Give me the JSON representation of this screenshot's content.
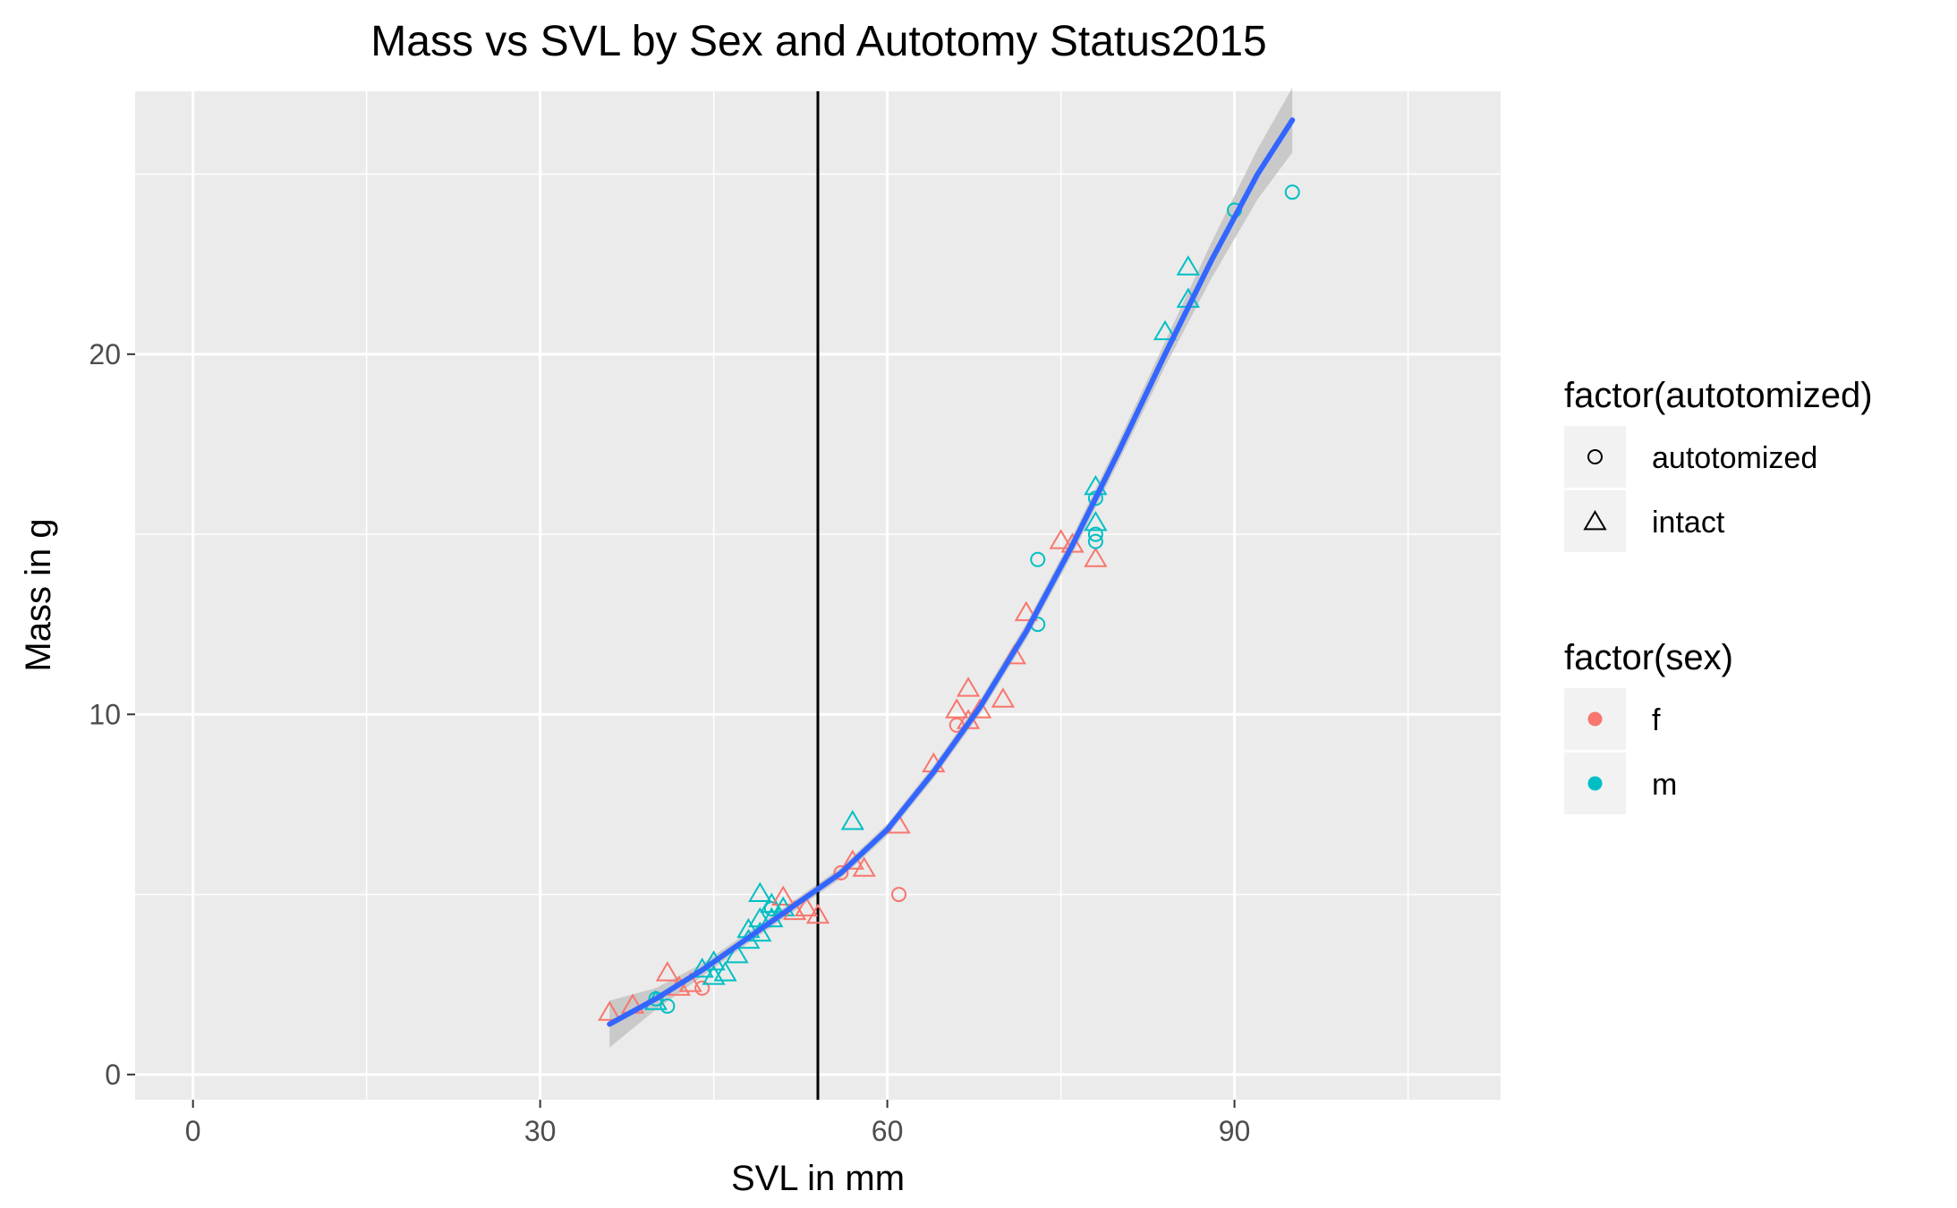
{
  "chart_data": {
    "type": "scatter",
    "title": "Mass vs SVL by Sex and Autotomy Status2015",
    "xlabel": "SVL in mm",
    "ylabel": "Mass in g",
    "xlim": [
      -5,
      113
    ],
    "ylim": [
      -0.7,
      27.3
    ],
    "x_ticks": [
      0,
      30,
      60,
      90
    ],
    "y_ticks": [
      0,
      10,
      20
    ],
    "grid": true,
    "vline": {
      "x": 54,
      "color": "#000000"
    },
    "legend_placement": "right",
    "legends": [
      {
        "title": "factor(autotomized)",
        "entries": [
          {
            "label": "autotomized",
            "shape": "circle"
          },
          {
            "label": "intact",
            "shape": "triangle"
          }
        ]
      },
      {
        "title": "factor(sex)",
        "entries": [
          {
            "label": "f",
            "color": "#F8766D"
          },
          {
            "label": "m",
            "color": "#00BFC4"
          }
        ]
      }
    ],
    "colors": {
      "f": "#F8766D",
      "m": "#00BFC4",
      "fit": "#3366FF",
      "ribbon": "#BDBDBD",
      "panel": "#EBEBEB",
      "grid": "#FFFFFF"
    },
    "points": [
      {
        "x": 36,
        "y": 1.7,
        "sex": "f",
        "status": "intact"
      },
      {
        "x": 38,
        "y": 1.9,
        "sex": "f",
        "status": "intact"
      },
      {
        "x": 40,
        "y": 2.0,
        "sex": "m",
        "status": "intact"
      },
      {
        "x": 40,
        "y": 2.1,
        "sex": "m",
        "status": "autotomized"
      },
      {
        "x": 41,
        "y": 1.9,
        "sex": "m",
        "status": "autotomized"
      },
      {
        "x": 41,
        "y": 2.8,
        "sex": "f",
        "status": "intact"
      },
      {
        "x": 42,
        "y": 2.4,
        "sex": "f",
        "status": "intact"
      },
      {
        "x": 43,
        "y": 2.5,
        "sex": "f",
        "status": "intact"
      },
      {
        "x": 44,
        "y": 2.4,
        "sex": "f",
        "status": "autotomized"
      },
      {
        "x": 44,
        "y": 2.9,
        "sex": "m",
        "status": "intact"
      },
      {
        "x": 45,
        "y": 2.7,
        "sex": "m",
        "status": "intact"
      },
      {
        "x": 45,
        "y": 3.1,
        "sex": "m",
        "status": "intact"
      },
      {
        "x": 46,
        "y": 2.8,
        "sex": "m",
        "status": "intact"
      },
      {
        "x": 47,
        "y": 3.3,
        "sex": "m",
        "status": "intact"
      },
      {
        "x": 48,
        "y": 3.7,
        "sex": "m",
        "status": "intact"
      },
      {
        "x": 48,
        "y": 4.0,
        "sex": "m",
        "status": "intact"
      },
      {
        "x": 49,
        "y": 3.9,
        "sex": "m",
        "status": "intact"
      },
      {
        "x": 49,
        "y": 4.3,
        "sex": "m",
        "status": "intact"
      },
      {
        "x": 49,
        "y": 5.0,
        "sex": "m",
        "status": "intact"
      },
      {
        "x": 50,
        "y": 4.3,
        "sex": "m",
        "status": "intact"
      },
      {
        "x": 50,
        "y": 4.6,
        "sex": "m",
        "status": "autotomized"
      },
      {
        "x": 50,
        "y": 4.7,
        "sex": "m",
        "status": "intact"
      },
      {
        "x": 51,
        "y": 4.9,
        "sex": "f",
        "status": "intact"
      },
      {
        "x": 51,
        "y": 4.6,
        "sex": "m",
        "status": "intact"
      },
      {
        "x": 52,
        "y": 4.5,
        "sex": "f",
        "status": "intact"
      },
      {
        "x": 53,
        "y": 4.6,
        "sex": "f",
        "status": "intact"
      },
      {
        "x": 54,
        "y": 4.4,
        "sex": "f",
        "status": "intact"
      },
      {
        "x": 56,
        "y": 5.6,
        "sex": "f",
        "status": "autotomized"
      },
      {
        "x": 57,
        "y": 5.9,
        "sex": "f",
        "status": "intact"
      },
      {
        "x": 57,
        "y": 7.0,
        "sex": "m",
        "status": "intact"
      },
      {
        "x": 58,
        "y": 5.7,
        "sex": "f",
        "status": "intact"
      },
      {
        "x": 61,
        "y": 5.0,
        "sex": "f",
        "status": "autotomized"
      },
      {
        "x": 61,
        "y": 6.9,
        "sex": "f",
        "status": "intact"
      },
      {
        "x": 64,
        "y": 8.6,
        "sex": "f",
        "status": "intact"
      },
      {
        "x": 66,
        "y": 9.7,
        "sex": "f",
        "status": "autotomized"
      },
      {
        "x": 66,
        "y": 10.1,
        "sex": "f",
        "status": "intact"
      },
      {
        "x": 67,
        "y": 9.8,
        "sex": "f",
        "status": "intact"
      },
      {
        "x": 67,
        "y": 10.7,
        "sex": "f",
        "status": "intact"
      },
      {
        "x": 68,
        "y": 10.1,
        "sex": "f",
        "status": "intact"
      },
      {
        "x": 70,
        "y": 10.4,
        "sex": "f",
        "status": "intact"
      },
      {
        "x": 71,
        "y": 11.6,
        "sex": "f",
        "status": "intact"
      },
      {
        "x": 72,
        "y": 12.8,
        "sex": "f",
        "status": "intact"
      },
      {
        "x": 73,
        "y": 12.5,
        "sex": "m",
        "status": "autotomized"
      },
      {
        "x": 73,
        "y": 14.3,
        "sex": "m",
        "status": "autotomized"
      },
      {
        "x": 75,
        "y": 14.8,
        "sex": "f",
        "status": "intact"
      },
      {
        "x": 76,
        "y": 14.7,
        "sex": "f",
        "status": "intact"
      },
      {
        "x": 78,
        "y": 14.3,
        "sex": "f",
        "status": "intact"
      },
      {
        "x": 78,
        "y": 14.8,
        "sex": "m",
        "status": "autotomized"
      },
      {
        "x": 78,
        "y": 15.0,
        "sex": "m",
        "status": "autotomized"
      },
      {
        "x": 78,
        "y": 15.3,
        "sex": "m",
        "status": "intact"
      },
      {
        "x": 78,
        "y": 16.0,
        "sex": "m",
        "status": "autotomized"
      },
      {
        "x": 78,
        "y": 16.3,
        "sex": "m",
        "status": "intact"
      },
      {
        "x": 84,
        "y": 20.6,
        "sex": "m",
        "status": "intact"
      },
      {
        "x": 86,
        "y": 21.5,
        "sex": "m",
        "status": "intact"
      },
      {
        "x": 86,
        "y": 22.4,
        "sex": "m",
        "status": "intact"
      },
      {
        "x": 90,
        "y": 24.0,
        "sex": "m",
        "status": "autotomized"
      },
      {
        "x": 95,
        "y": 24.5,
        "sex": "m",
        "status": "autotomized"
      }
    ],
    "smooth": {
      "x": [
        36,
        40,
        44,
        48,
        52,
        56,
        60,
        64,
        68,
        72,
        76,
        80,
        84,
        88,
        92,
        95
      ],
      "y": [
        1.4,
        2.1,
        2.9,
        3.8,
        4.7,
        5.6,
        6.8,
        8.4,
        10.2,
        12.3,
        14.7,
        17.3,
        20.0,
        22.6,
        25.0,
        26.5
      ],
      "se": [
        0.65,
        0.3,
        0.18,
        0.15,
        0.15,
        0.15,
        0.16,
        0.18,
        0.2,
        0.22,
        0.25,
        0.28,
        0.35,
        0.5,
        0.7,
        0.9
      ]
    }
  }
}
